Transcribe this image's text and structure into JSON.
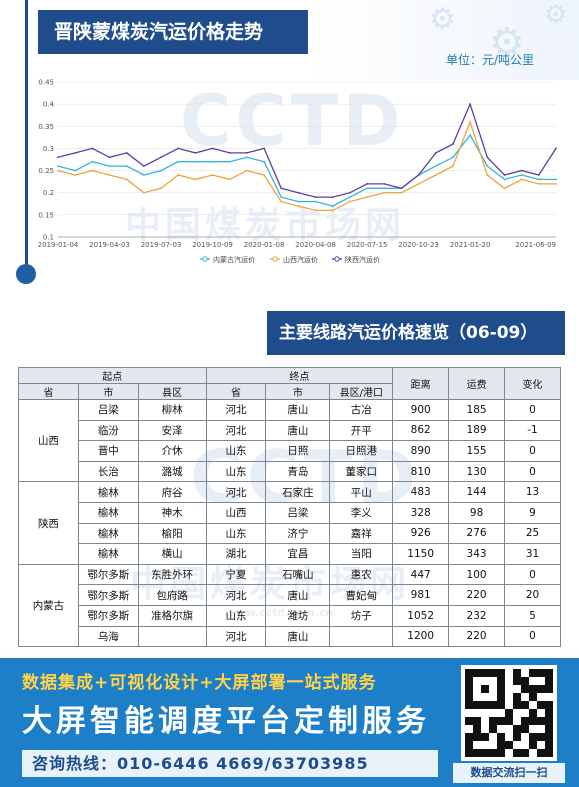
{
  "header": {
    "chart_title": "晋陕蒙煤炭汽运价格走势",
    "unit": "单位：元/吨公里"
  },
  "watermark": {
    "logo": "CCTD",
    "text": "中国煤炭市场网",
    "url": "www.cctd.com.cn"
  },
  "chart_data": {
    "type": "line",
    "title": "",
    "x": [
      "2019-01-04",
      "2019-02-04",
      "2019-03-04",
      "2019-04-03",
      "2019-05-03",
      "2019-06-03",
      "2019-07-03",
      "2019-08-03",
      "2019-09-03",
      "2019-10-09",
      "2019-11-08",
      "2019-12-08",
      "2020-01-08",
      "2020-02-08",
      "2020-03-08",
      "2020-04-08",
      "2020-05-08",
      "2020-06-08",
      "2020-07-15",
      "2020-08-15",
      "2020-09-15",
      "2020-10-23",
      "2020-11-20",
      "2020-12-20",
      "2021-01-20",
      "2021-02-20",
      "2021-03-20",
      "2021-04-20",
      "2021-05-20",
      "2021-06-09"
    ],
    "tick_labels": [
      "2019-01-04",
      "2019-04-03",
      "2019-07-03",
      "2019-10-09",
      "2020-01-08",
      "2020-04-08",
      "2020-07-15",
      "2020-10-23",
      "2021-01-20",
      "2021-06-09"
    ],
    "yticks": [
      0.1,
      0.15,
      0.2,
      0.25,
      0.3,
      0.35,
      0.4,
      0.45
    ],
    "ylim": [
      0.1,
      0.45
    ],
    "series": [
      {
        "name": "内蒙古汽运价",
        "color": "#36b3e0",
        "values": [
          0.26,
          0.25,
          0.27,
          0.26,
          0.26,
          0.24,
          0.25,
          0.27,
          0.27,
          0.27,
          0.27,
          0.28,
          0.27,
          0.19,
          0.18,
          0.18,
          0.17,
          0.19,
          0.21,
          0.21,
          0.21,
          0.24,
          0.26,
          0.28,
          0.33,
          0.26,
          0.23,
          0.24,
          0.23,
          0.23
        ]
      },
      {
        "name": "山西汽运价",
        "color": "#f0a43c",
        "values": [
          0.25,
          0.24,
          0.25,
          0.24,
          0.23,
          0.2,
          0.21,
          0.24,
          0.23,
          0.24,
          0.23,
          0.25,
          0.24,
          0.18,
          0.17,
          0.16,
          0.16,
          0.18,
          0.19,
          0.2,
          0.2,
          0.22,
          0.24,
          0.26,
          0.36,
          0.24,
          0.21,
          0.23,
          0.22,
          0.22
        ]
      },
      {
        "name": "陕西汽运价",
        "color": "#5b3f9c",
        "values": [
          0.28,
          0.29,
          0.3,
          0.28,
          0.29,
          0.26,
          0.28,
          0.3,
          0.29,
          0.3,
          0.29,
          0.29,
          0.3,
          0.21,
          0.2,
          0.19,
          0.19,
          0.2,
          0.22,
          0.22,
          0.21,
          0.24,
          0.29,
          0.31,
          0.4,
          0.28,
          0.24,
          0.25,
          0.24,
          0.3
        ]
      }
    ],
    "legend": "bottom",
    "grid": true
  },
  "table": {
    "title": "主要线路汽运价格速览（06-09）",
    "group_headers": {
      "origin": "起点",
      "dest": "终点",
      "distance": "距离",
      "freight": "运费",
      "change": "变化"
    },
    "sub_headers": [
      "省",
      "市",
      "县区",
      "省",
      "市",
      "县区/港口"
    ],
    "groups": [
      {
        "province": "山西",
        "rows": [
          [
            "吕梁",
            "柳林",
            "河北",
            "唐山",
            "古冶",
            "900",
            "185",
            "0"
          ],
          [
            "临汾",
            "安泽",
            "河北",
            "唐山",
            "开平",
            "862",
            "189",
            "-1"
          ],
          [
            "晋中",
            "介休",
            "山东",
            "日照",
            "日照港",
            "890",
            "155",
            "0"
          ],
          [
            "长治",
            "潞城",
            "山东",
            "青岛",
            "董家口",
            "810",
            "130",
            "0"
          ]
        ]
      },
      {
        "province": "陕西",
        "rows": [
          [
            "榆林",
            "府谷",
            "河北",
            "石家庄",
            "平山",
            "483",
            "144",
            "13"
          ],
          [
            "榆林",
            "神木",
            "山西",
            "吕梁",
            "李义",
            "328",
            "98",
            "9"
          ],
          [
            "榆林",
            "榆阳",
            "山东",
            "济宁",
            "嘉祥",
            "926",
            "276",
            "25"
          ],
          [
            "榆林",
            "横山",
            "湖北",
            "宜昌",
            "当阳",
            "1150",
            "343",
            "31"
          ]
        ]
      },
      {
        "province": "内蒙古",
        "rows": [
          [
            "鄂尔多斯",
            "东胜外环",
            "宁夏",
            "石嘴山",
            "惠农",
            "447",
            "100",
            "0"
          ],
          [
            "鄂尔多斯",
            "包府路",
            "河北",
            "唐山",
            "曹妃甸",
            "981",
            "220",
            "20"
          ],
          [
            "鄂尔多斯",
            "准格尔旗",
            "山东",
            "潍坊",
            "坊子",
            "1052",
            "232",
            "5"
          ],
          [
            "乌海",
            "",
            "河北",
            "唐山",
            "",
            "1200",
            "220",
            "0"
          ]
        ]
      }
    ]
  },
  "banner": {
    "line1": "数据集成+可视化设计+大屏部署一站式服务",
    "line2": "大屏智能调度平台定制服务",
    "hotline": "咨询热线：010-6446 4669/63703985",
    "qr_label": "数据交流扫一扫"
  }
}
